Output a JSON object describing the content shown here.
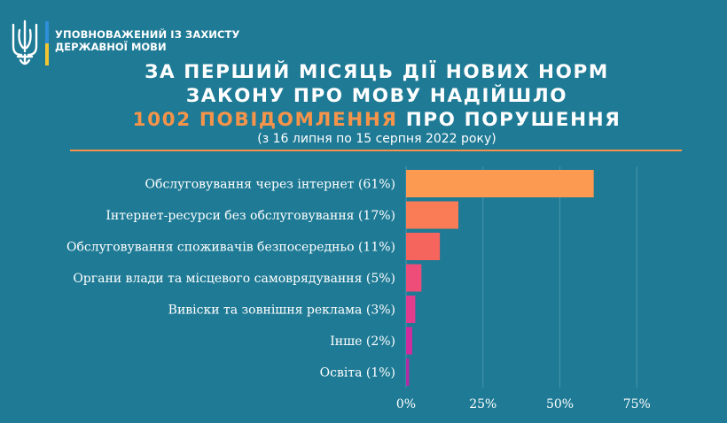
{
  "header": {
    "org_line1": "УПОВНОВАЖЕНИЙ ІЗ ЗАХИСТУ",
    "org_line2": "ДЕРЖАВНОЇ МОВИ",
    "emblem_icon": "trident-icon"
  },
  "title": {
    "line1": "ЗА ПЕРШИЙ МІСЯЦЬ ДІЇ НОВИХ НОРМ",
    "line2": "ЗАКОНУ ПРО МОВУ НАДІЙШЛО",
    "line3_accent": "1002 ПОВІДОМЛЕННЯ",
    "line3_rest": " ПРО ПОРУШЕННЯ",
    "subtitle": "(з 16 липня по 15 серпня 2022 року)"
  },
  "colors": {
    "background": "#1e7a95",
    "accent": "#f5944a",
    "bars": [
      "#fb9a50",
      "#fa7c56",
      "#f6645e",
      "#ee4d79",
      "#e23d8d",
      "#cf2d9e",
      "#b22ca6"
    ],
    "grid": "#4a95ab"
  },
  "chart_data": {
    "type": "bar",
    "orientation": "horizontal",
    "categories": [
      "Обслуговування через інтернет (61%)",
      "Інтернет-ресурси без обслуговування (17%)",
      "Обслуговування споживачів безпосередньо (11%)",
      "Органи влади та місцевого самоврядування (5%)",
      "Вивіски та зовнішня реклама (3%)",
      "Інше (2%)",
      "Освіта (1%)"
    ],
    "values": [
      61,
      17,
      11,
      5,
      3,
      2,
      1
    ],
    "xlim": [
      0,
      85
    ],
    "xticks": [
      0,
      25,
      50,
      75
    ],
    "xtick_labels": [
      "0%",
      "25%",
      "50%",
      "75%"
    ],
    "grid": true
  }
}
